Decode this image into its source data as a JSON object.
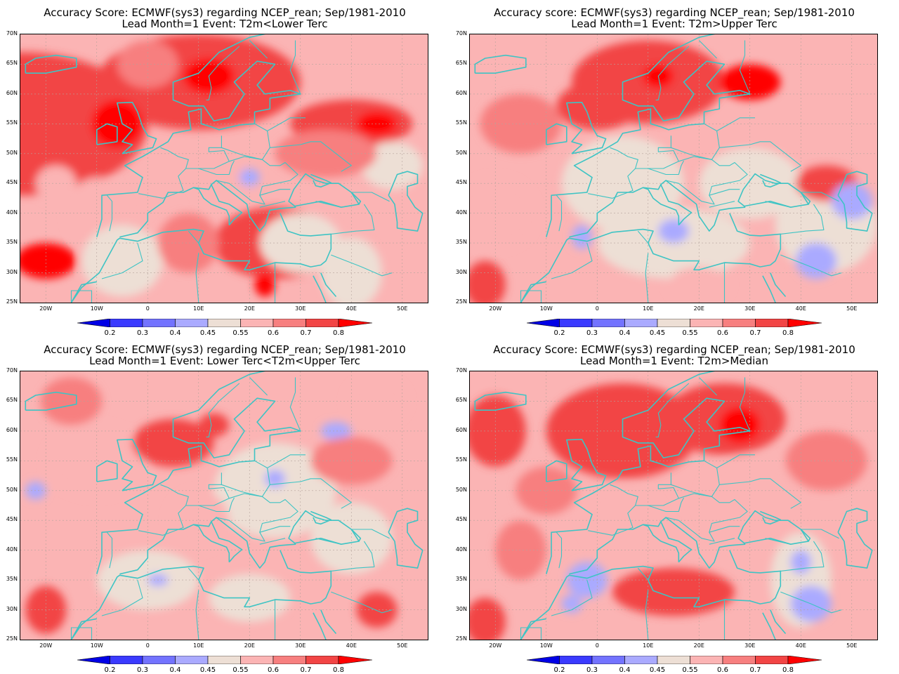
{
  "colors": {
    "ocean": "#fbe3da",
    "coast": "#3ec4c4",
    "grid": "#b5a39c",
    "levels": [
      "#0000e6",
      "#3a3aff",
      "#7373ff",
      "#aaaaff",
      "#eddfd5",
      "#fbb4b4",
      "#f77f7f",
      "#f24545",
      "#ff0000"
    ]
  },
  "colorbar": {
    "labels": [
      "0.2",
      "0.3",
      "0.4",
      "0.45",
      "0.55",
      "0.6",
      "0.7",
      "0.8"
    ]
  },
  "axes": {
    "lon_labels": [
      "20W",
      "10W",
      "0",
      "10E",
      "20E",
      "30E",
      "40E",
      "50E"
    ],
    "lat_labels": [
      "70N",
      "65N",
      "60N",
      "55N",
      "50N",
      "45N",
      "40N",
      "35N",
      "30N",
      "25N"
    ]
  },
  "panels": [
    {
      "title1": "Accuracy Score: ECMWF(sys3) regarding NCEP_rean; Sep/1981-2010",
      "title2": "Lead Month=1 Event: T2m<Lower Terc"
    },
    {
      "title1": "Accuracy score: ECMWF(sys3) regarding NCEP_rean; Sep/1981-2010",
      "title2": "Lead Month=1 Event: T2m>Upper Terc"
    },
    {
      "title1": "Accuracy Score: ECMWF(sys3) regarding NCEP_rean; Sep/1981-2010",
      "title2": "Lead Month=1 Event: Lower Terc<T2m<Upper Terc"
    },
    {
      "title1": "Accuracy Score: ECMWF(sys3) regarding NCEP_rean; Sep/1981-2010",
      "title2": "Lead Month=1 Event: T2m>Median"
    }
  ]
}
